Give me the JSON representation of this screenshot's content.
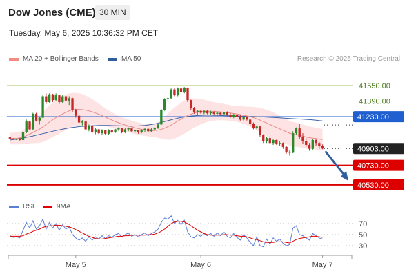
{
  "header": {
    "title": "Dow Jones (CME)",
    "interval": "30 MIN",
    "timestamp": "Tuesday, May 6, 2025 10:36:32 PM CET"
  },
  "legend": {
    "items": [
      {
        "label": "MA 20 + Bollinger Bands",
        "color": "#f28b82"
      },
      {
        "label": "MA 50",
        "color": "#2f5d9e"
      }
    ],
    "credit": "Research © 2025 Trading Central"
  },
  "rsi_legend": {
    "items": [
      {
        "label": "RSI",
        "color": "#5b7fd6"
      },
      {
        "label": "9MA",
        "color": "#e00000"
      }
    ]
  },
  "chart_data": {
    "type": "candlestick",
    "y_range": [
      40430,
      41720
    ],
    "price_ticks": [
      "41550.00",
      "41390.00"
    ],
    "levels": [
      {
        "label": "41550.00",
        "value": 41550,
        "kind": "green-line"
      },
      {
        "label": "41390.00",
        "value": 41390,
        "kind": "green-line"
      },
      {
        "label": "41230.00",
        "value": 41230,
        "kind": "resistance",
        "color": "#1f5fd0"
      },
      {
        "label": "40903.00",
        "value": 40903,
        "kind": "current",
        "color": "#222222"
      },
      {
        "label": "40730.00",
        "value": 40730,
        "kind": "support",
        "color": "#dd0000"
      },
      {
        "label": "40530.00",
        "value": 40530,
        "kind": "support",
        "color": "#dd0000"
      }
    ],
    "x_labels": [
      {
        "label": "May 5",
        "index": 20
      },
      {
        "label": "May 6",
        "index": 58
      },
      {
        "label": "May 7",
        "index": 95
      }
    ],
    "candles": [
      [
        41018,
        41020,
        41000,
        41005
      ],
      [
        41005,
        41010,
        40992,
        40998
      ],
      [
        40998,
        41005,
        40990,
        41000
      ],
      [
        41000,
        41012,
        40985,
        40990
      ],
      [
        40990,
        41075,
        40988,
        41070
      ],
      [
        41070,
        41200,
        41060,
        41180
      ],
      [
        41180,
        41190,
        41090,
        41100
      ],
      [
        41100,
        41270,
        41095,
        41260
      ],
      [
        41260,
        41270,
        41180,
        41190
      ],
      [
        41190,
        41230,
        41150,
        41220
      ],
      [
        41220,
        41455,
        41215,
        41440
      ],
      [
        41440,
        41470,
        41360,
        41380
      ],
      [
        41380,
        41470,
        41370,
        41460
      ],
      [
        41460,
        41465,
        41380,
        41400
      ],
      [
        41400,
        41470,
        41395,
        41450
      ],
      [
        41450,
        41455,
        41360,
        41380
      ],
      [
        41380,
        41450,
        41370,
        41440
      ],
      [
        41440,
        41445,
        41380,
        41395
      ],
      [
        41395,
        41440,
        41350,
        41420
      ],
      [
        41420,
        41425,
        41280,
        41300
      ],
      [
        41300,
        41310,
        41220,
        41240
      ],
      [
        41240,
        41250,
        41150,
        41170
      ],
      [
        41170,
        41195,
        41140,
        41180
      ],
      [
        41180,
        41190,
        41090,
        41100
      ],
      [
        41100,
        41150,
        41080,
        41140
      ],
      [
        41140,
        41145,
        41060,
        41075
      ],
      [
        41075,
        41110,
        41050,
        41100
      ],
      [
        41100,
        41105,
        41050,
        41060
      ],
      [
        41060,
        41100,
        41040,
        41090
      ],
      [
        41090,
        41095,
        41040,
        41055
      ],
      [
        41055,
        41100,
        41040,
        41090
      ],
      [
        41090,
        41095,
        41060,
        41070
      ],
      [
        41070,
        41105,
        41060,
        41100
      ],
      [
        41100,
        41120,
        41085,
        41110
      ],
      [
        41110,
        41115,
        41060,
        41075
      ],
      [
        41075,
        41110,
        41060,
        41100
      ],
      [
        41100,
        41120,
        41080,
        41110
      ],
      [
        41110,
        41115,
        41070,
        41080
      ],
      [
        41080,
        41100,
        41060,
        41090
      ],
      [
        41090,
        41095,
        41055,
        41070
      ],
      [
        41070,
        41100,
        41060,
        41090
      ],
      [
        41090,
        41110,
        41075,
        41105
      ],
      [
        41105,
        41110,
        41070,
        41080
      ],
      [
        41080,
        41110,
        41070,
        41100
      ],
      [
        41100,
        41125,
        41090,
        41115
      ],
      [
        41115,
        41160,
        41105,
        41150
      ],
      [
        41150,
        41310,
        41145,
        41300
      ],
      [
        41300,
        41420,
        41290,
        41410
      ],
      [
        41410,
        41430,
        41380,
        41420
      ],
      [
        41420,
        41520,
        41410,
        41510
      ],
      [
        41510,
        41520,
        41440,
        41450
      ],
      [
        41450,
        41530,
        41440,
        41520
      ],
      [
        41520,
        41525,
        41460,
        41480
      ],
      [
        41480,
        41535,
        41470,
        41525
      ],
      [
        41525,
        41530,
        41380,
        41400
      ],
      [
        41400,
        41405,
        41300,
        41320
      ],
      [
        41320,
        41330,
        41260,
        41280
      ],
      [
        41280,
        41300,
        41250,
        41290
      ],
      [
        41290,
        41300,
        41260,
        41270
      ],
      [
        41270,
        41300,
        41255,
        41290
      ],
      [
        41290,
        41295,
        41255,
        41265
      ],
      [
        41265,
        41290,
        41250,
        41280
      ],
      [
        41280,
        41285,
        41250,
        41260
      ],
      [
        41260,
        41280,
        41240,
        41270
      ],
      [
        41270,
        41275,
        41245,
        41255
      ],
      [
        41255,
        41290,
        41240,
        41280
      ],
      [
        41280,
        41285,
        41240,
        41250
      ],
      [
        41250,
        41265,
        41220,
        41230
      ],
      [
        41230,
        41260,
        41215,
        41250
      ],
      [
        41250,
        41255,
        41210,
        41225
      ],
      [
        41225,
        41245,
        41190,
        41200
      ],
      [
        41200,
        41235,
        41190,
        41230
      ],
      [
        41230,
        41235,
        41190,
        41200
      ],
      [
        41200,
        41210,
        41140,
        41160
      ],
      [
        41160,
        41170,
        41100,
        41110
      ],
      [
        41110,
        41140,
        41100,
        41130
      ],
      [
        41130,
        41140,
        41020,
        41040
      ],
      [
        41040,
        41050,
        40960,
        40980
      ],
      [
        40980,
        41020,
        40960,
        41010
      ],
      [
        41010,
        41030,
        40950,
        40960
      ],
      [
        40960,
        41000,
        40940,
        40990
      ],
      [
        40990,
        40995,
        40940,
        40955
      ],
      [
        40955,
        40980,
        40930,
        40960
      ],
      [
        40960,
        40965,
        40900,
        40920
      ],
      [
        40920,
        40930,
        40850,
        40870
      ],
      [
        40870,
        40890,
        40830,
        40860
      ],
      [
        40860,
        41080,
        40855,
        41060
      ],
      [
        41060,
        41120,
        41040,
        41110
      ],
      [
        41110,
        41160,
        41000,
        41020
      ],
      [
        41020,
        41060,
        40950,
        40980
      ],
      [
        40980,
        41010,
        40920,
        40940
      ],
      [
        40940,
        40960,
        40880,
        40900
      ],
      [
        40900,
        41000,
        40890,
        40990
      ],
      [
        40990,
        41000,
        40930,
        40960
      ],
      [
        40960,
        40970,
        40900,
        40930
      ],
      [
        40930,
        40945,
        40895,
        40903
      ]
    ],
    "ma20": [
      41005,
      41005,
      41008,
      41012,
      41020,
      41035,
      41050,
      41068,
      41085,
      41102,
      41125,
      41150,
      41175,
      41198,
      41220,
      41240,
      41258,
      41275,
      41290,
      41300,
      41305,
      41305,
      41302,
      41298,
      41290,
      41280,
      41268,
      41255,
      41240,
      41225,
      41210,
      41195,
      41180,
      41168,
      41155,
      41145,
      41135,
      41125,
      41115,
      41108,
      41100,
      41095,
      41090,
      41088,
      41088,
      41092,
      41100,
      41112,
      41128,
      41145,
      41165,
      41185,
      41205,
      41225,
      41242,
      41256,
      41268,
      41276,
      41282,
      41285,
      41286,
      41286,
      41285,
      41283,
      41280,
      41277,
      41273,
      41268,
      41263,
      41258,
      41252,
      41245,
      41238,
      41230,
      41220,
      41208,
      41195,
      41180,
      41165,
      41150,
      41135,
      41120,
      41105,
      41090,
      41075,
      41060,
      41050,
      41045,
      41038,
      41030,
      41022,
      41015,
      41010,
      41005,
      41000,
      40995
    ],
    "ma20_band_width": [
      60,
      60,
      62,
      66,
      72,
      82,
      95,
      110,
      125,
      140,
      155,
      165,
      172,
      178,
      182,
      185,
      185,
      183,
      180,
      175,
      170,
      165,
      160,
      150,
      140,
      130,
      120,
      110,
      100,
      92,
      85,
      80,
      76,
      72,
      70,
      68,
      66,
      65,
      64,
      63,
      62,
      62,
      63,
      65,
      70,
      80,
      95,
      115,
      135,
      150,
      160,
      165,
      168,
      170,
      168,
      160,
      150,
      140,
      130,
      120,
      110,
      100,
      95,
      90,
      86,
      84,
      82,
      80,
      80,
      82,
      85,
      90,
      95,
      102,
      110,
      118,
      125,
      130,
      135,
      140,
      140,
      138,
      135,
      130,
      128,
      126,
      125,
      124,
      122,
      120,
      118,
      116,
      114,
      112,
      110,
      108
    ],
    "ma50": [
      40990,
      40995,
      41000,
      41005,
      41010,
      41018,
      41025,
      41032,
      41040,
      41048,
      41056,
      41064,
      41072,
      41080,
      41088,
      41095,
      41102,
      41108,
      41114,
      41120,
      41124,
      41128,
      41131,
      41134,
      41136,
      41138,
      41139,
      41140,
      41140,
      41140,
      41140,
      41139,
      41138,
      41137,
      41136,
      41135,
      41134,
      41134,
      41135,
      41136,
      41138,
      41141,
      41145,
      41150,
      41156,
      41163,
      41171,
      41180,
      41189,
      41198,
      41207,
      41215,
      41222,
      41228,
      41233,
      41237,
      41240,
      41242,
      41244,
      41245,
      41245,
      41245,
      41244,
      41243,
      41242,
      41241,
      41240,
      41239,
      41238,
      41237,
      41236,
      41235,
      41234,
      41233,
      41232,
      41231,
      41230,
      41228,
      41226,
      41224,
      41222,
      41220,
      41218,
      41216,
      41214,
      41212,
      41210,
      41208,
      41206,
      41204,
      41202,
      41200,
      41197,
      41194,
      41190,
      41186
    ],
    "rsi_ticks": [
      70,
      50,
      30
    ],
    "rsi_range": [
      15,
      85
    ],
    "rsi": [
      48,
      45,
      46,
      44,
      58,
      72,
      62,
      75,
      60,
      66,
      78,
      60,
      72,
      62,
      70,
      58,
      68,
      60,
      64,
      50,
      44,
      40,
      44,
      38,
      46,
      40,
      46,
      42,
      48,
      43,
      48,
      45,
      50,
      52,
      46,
      50,
      53,
      47,
      50,
      46,
      50,
      53,
      48,
      52,
      55,
      60,
      72,
      80,
      78,
      84,
      70,
      76,
      68,
      76,
      55,
      46,
      44,
      50,
      47,
      52,
      48,
      52,
      47,
      53,
      48,
      55,
      47,
      44,
      52,
      45,
      40,
      50,
      44,
      36,
      30,
      46,
      30,
      28,
      42,
      33,
      44,
      38,
      42,
      34,
      30,
      32,
      62,
      66,
      50,
      48,
      44,
      40,
      52,
      48,
      44,
      42
    ],
    "rsi_ma9": [
      47,
      47,
      47,
      47,
      48,
      51,
      53,
      56,
      58,
      60,
      63,
      65,
      66,
      66,
      67,
      67,
      66,
      65,
      64,
      62,
      59,
      56,
      53,
      50,
      47,
      45,
      43,
      42,
      42,
      43,
      44,
      45,
      46,
      47,
      47,
      48,
      48,
      49,
      49,
      49,
      49,
      49,
      50,
      50,
      51,
      53,
      56,
      60,
      65,
      70,
      73,
      74,
      74,
      73,
      70,
      66,
      62,
      58,
      55,
      52,
      50,
      49,
      49,
      49,
      49,
      50,
      50,
      49,
      49,
      48,
      47,
      47,
      46,
      44,
      42,
      41,
      39,
      37,
      36,
      36,
      36,
      37,
      37,
      37,
      36,
      35,
      38,
      41,
      43,
      44,
      45,
      46,
      47,
      47,
      46,
      45
    ]
  },
  "annotations": {
    "arrow_target": "40530.00"
  }
}
